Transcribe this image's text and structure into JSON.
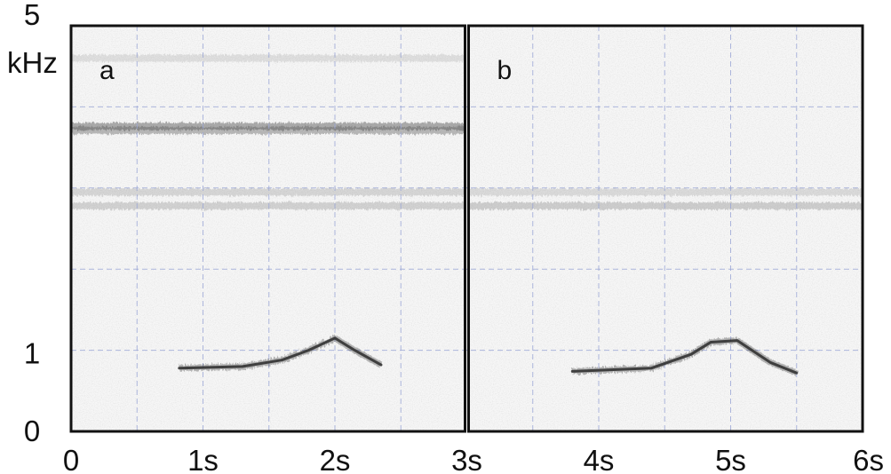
{
  "chart_data": {
    "type": "heatmap",
    "title": "",
    "xlabel": "",
    "ylabel": "",
    "xlim": [
      0,
      6
    ],
    "ylim": [
      0,
      5
    ],
    "x_ticks": [
      {
        "value": 0,
        "label": "0"
      },
      {
        "value": 1,
        "label": "1s"
      },
      {
        "value": 2,
        "label": "2s"
      },
      {
        "value": 3,
        "label": "3s"
      },
      {
        "value": 4,
        "label": "4s"
      },
      {
        "value": 5,
        "label": "5s"
      },
      {
        "value": 6,
        "label": "6s"
      }
    ],
    "y_ticks": [
      {
        "value": 0,
        "label": "0"
      },
      {
        "value": 1,
        "label": "1"
      },
      {
        "value": 5,
        "label": "5"
      }
    ],
    "y_unit": "kHz",
    "grid": true,
    "grid_step_x": 0.5,
    "grid_step_y": 1,
    "colors": {
      "frame": "#111111",
      "grid": "#9aa6d6",
      "signal": "#3a3a3a",
      "noise": "#d9d9d9"
    },
    "panels": [
      {
        "label": "a",
        "x_range": [
          0,
          3
        ],
        "noise_bands": [
          {
            "freq": 3.76,
            "intensity": 0.85
          },
          {
            "freq": 3.71,
            "intensity": 0.7
          },
          {
            "freq": 2.95,
            "intensity": 0.35
          },
          {
            "freq": 2.78,
            "intensity": 0.4
          },
          {
            "freq": 4.6,
            "intensity": 0.25
          }
        ],
        "call_contour": [
          [
            0.82,
            0.78
          ],
          [
            1.3,
            0.8
          ],
          [
            1.6,
            0.88
          ],
          [
            1.8,
            1.0
          ],
          [
            2.0,
            1.15
          ],
          [
            2.15,
            1.0
          ],
          [
            2.35,
            0.82
          ]
        ]
      },
      {
        "label": "b",
        "x_range": [
          3,
          6
        ],
        "noise_bands": [
          {
            "freq": 2.95,
            "intensity": 0.3
          },
          {
            "freq": 2.78,
            "intensity": 0.45
          }
        ],
        "call_contour": [
          [
            3.8,
            0.74
          ],
          [
            4.4,
            0.78
          ],
          [
            4.7,
            0.95
          ],
          [
            4.85,
            1.1
          ],
          [
            5.05,
            1.12
          ],
          [
            5.3,
            0.85
          ],
          [
            5.5,
            0.72
          ]
        ]
      }
    ]
  }
}
